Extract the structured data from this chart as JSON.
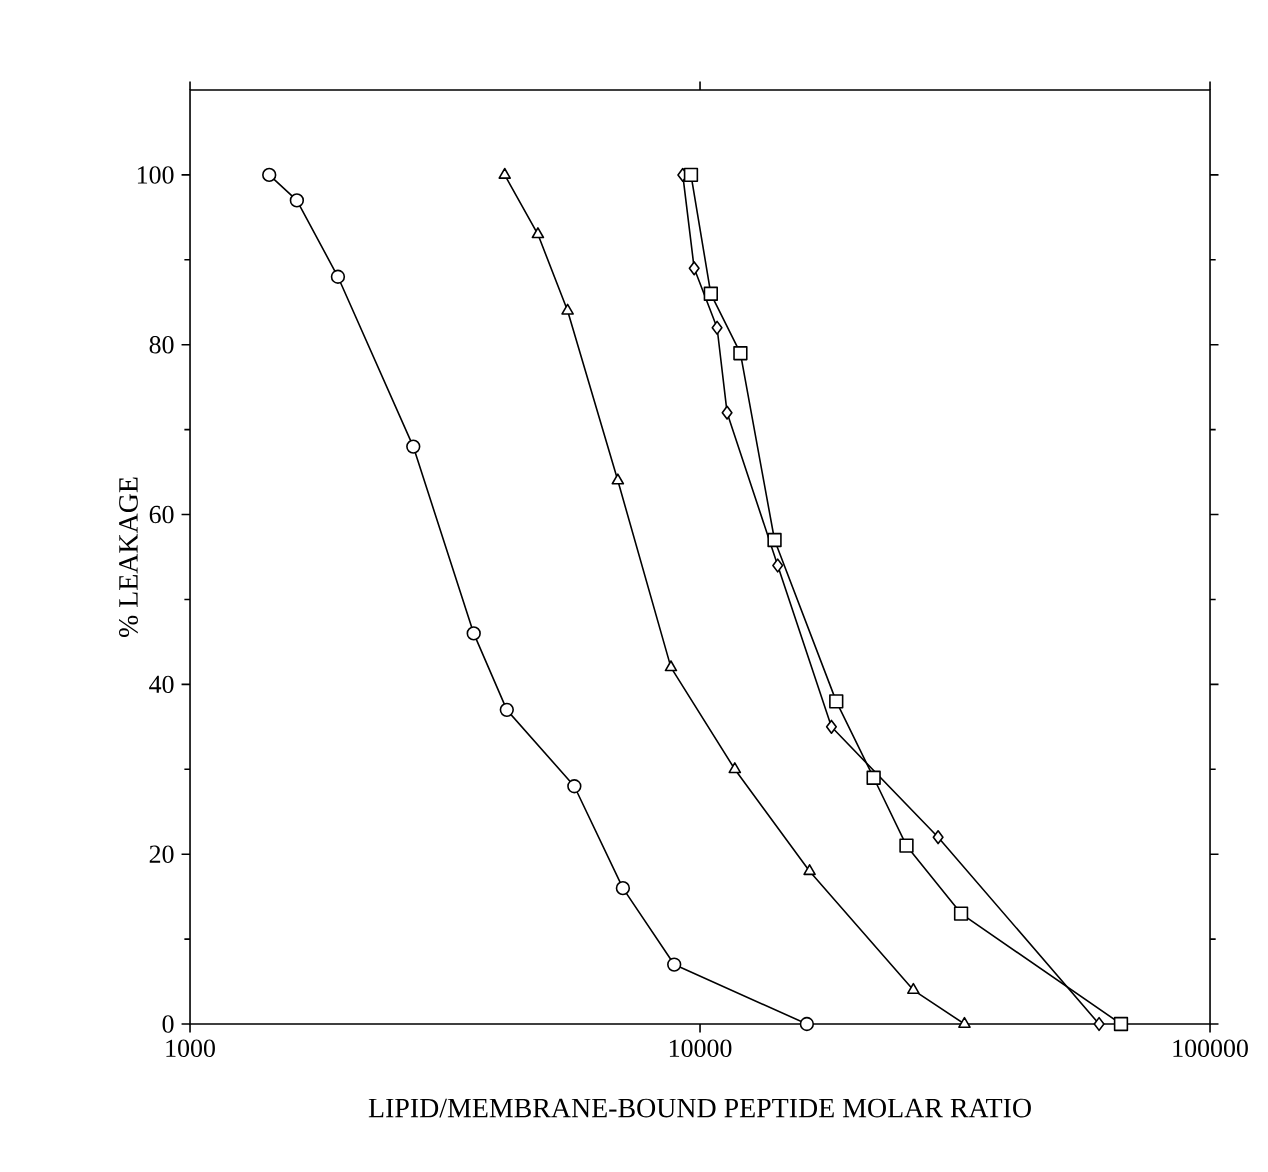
{
  "chart_data": {
    "type": "line",
    "xlabel": "LIPID/MEMBRANE-BOUND PEPTIDE MOLAR RATIO",
    "ylabel": "% LEAKAGE",
    "log": "x",
    "xlim": [
      1000,
      100000
    ],
    "xticks": [
      1000,
      10000,
      100000
    ],
    "ylim": [
      0,
      110
    ],
    "yticks": [
      0,
      20,
      40,
      60,
      80,
      100
    ],
    "line_style": "solid",
    "series": [
      {
        "color": "#000000",
        "marker": "circle",
        "x": [
          1430,
          1620,
          1950,
          2740,
          3600,
          4180,
          5670,
          7060,
          8900,
          16200
        ],
        "values": [
          100,
          97,
          88,
          68,
          46,
          37,
          28,
          16,
          7,
          0
        ]
      },
      {
        "color": "#000000",
        "marker": "triangle",
        "x": [
          4140,
          4810,
          5500,
          6900,
          8770,
          11700,
          16400,
          26200,
          33000
        ],
        "values": [
          100,
          93,
          84,
          64,
          42,
          30,
          18,
          4,
          0
        ]
      },
      {
        "color": "#000000",
        "marker": "diamond",
        "x": [
          9250,
          9740,
          10800,
          11300,
          14200,
          18100,
          29300,
          60600
        ],
        "values": [
          100,
          89,
          82,
          72,
          54,
          35,
          22,
          0
        ]
      },
      {
        "color": "#000000",
        "marker": "square",
        "x": [
          9600,
          10500,
          12000,
          14000,
          18500,
          21900,
          25400,
          32500,
          66900
        ],
        "values": [
          100,
          86,
          79,
          57,
          38,
          29,
          21,
          13,
          0
        ]
      }
    ]
  }
}
